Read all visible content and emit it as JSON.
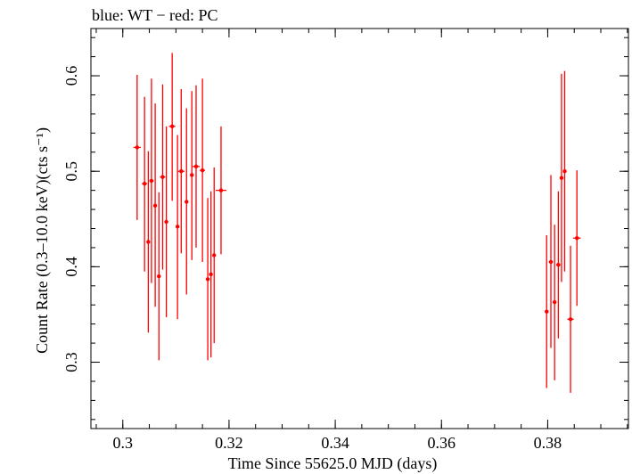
{
  "chart_data": {
    "type": "scatter",
    "title": "blue: WT − red: PC",
    "xlabel": "Time Since 55625.0 MJD (days)",
    "ylabel": "Count Rate (0.3–10.0 keV)(cts s⁻¹)",
    "xlim": [
      0.294,
      0.3952
    ],
    "ylim": [
      0.2305,
      0.6495
    ],
    "x_ticks": [
      0.3,
      0.32,
      0.34,
      0.36,
      0.38
    ],
    "x_tick_labels": [
      "0.3",
      "0.32",
      "0.34",
      "0.36",
      "0.38"
    ],
    "y_ticks": [
      0.3,
      0.4,
      0.5,
      0.6
    ],
    "y_tick_labels": [
      "0.3",
      "0.4",
      "0.5",
      "0.6"
    ],
    "grid": false,
    "legend": "none",
    "series": [
      {
        "color": "#ff0000",
        "points": [
          {
            "x": 0.3027,
            "y": 0.525,
            "ylo": 0.449,
            "yhi": 0.601,
            "xerr": 0.0007
          },
          {
            "x": 0.3041,
            "y": 0.487,
            "ylo": 0.395,
            "yhi": 0.578,
            "xerr": 0.0005
          },
          {
            "x": 0.3048,
            "y": 0.426,
            "ylo": 0.331,
            "yhi": 0.521,
            "xerr": 0.0003
          },
          {
            "x": 0.3054,
            "y": 0.49,
            "ylo": 0.383,
            "yhi": 0.597,
            "xerr": 0.0004
          },
          {
            "x": 0.3061,
            "y": 0.464,
            "ylo": 0.358,
            "yhi": 0.571,
            "xerr": 0.0003
          },
          {
            "x": 0.3068,
            "y": 0.39,
            "ylo": 0.302,
            "yhi": 0.478,
            "xerr": 0.0003
          },
          {
            "x": 0.3075,
            "y": 0.494,
            "ylo": 0.397,
            "yhi": 0.591,
            "xerr": 0.0005
          },
          {
            "x": 0.3082,
            "y": 0.447,
            "ylo": 0.347,
            "yhi": 0.547,
            "xerr": 0.0003
          },
          {
            "x": 0.3093,
            "y": 0.547,
            "ylo": 0.469,
            "yhi": 0.624,
            "xerr": 0.0006
          },
          {
            "x": 0.3103,
            "y": 0.442,
            "ylo": 0.345,
            "yhi": 0.538,
            "xerr": 0.0003
          },
          {
            "x": 0.311,
            "y": 0.5,
            "ylo": 0.414,
            "yhi": 0.586,
            "xerr": 0.0006
          },
          {
            "x": 0.312,
            "y": 0.468,
            "ylo": 0.371,
            "yhi": 0.566,
            "xerr": 0.0003
          },
          {
            "x": 0.313,
            "y": 0.496,
            "ylo": 0.407,
            "yhi": 0.584,
            "xerr": 0.0003
          },
          {
            "x": 0.3138,
            "y": 0.505,
            "ylo": 0.42,
            "yhi": 0.59,
            "xerr": 0.0007
          },
          {
            "x": 0.315,
            "y": 0.501,
            "ylo": 0.405,
            "yhi": 0.597,
            "xerr": 0.0005
          },
          {
            "x": 0.316,
            "y": 0.387,
            "ylo": 0.302,
            "yhi": 0.472,
            "xerr": 0.0003
          },
          {
            "x": 0.3166,
            "y": 0.392,
            "ylo": 0.305,
            "yhi": 0.479,
            "xerr": 0.0003
          },
          {
            "x": 0.3172,
            "y": 0.412,
            "ylo": 0.32,
            "yhi": 0.504,
            "xerr": 0.0002
          },
          {
            "x": 0.3185,
            "y": 0.48,
            "ylo": 0.413,
            "yhi": 0.547,
            "xerr": 0.001
          },
          {
            "x": 0.3798,
            "y": 0.353,
            "ylo": 0.273,
            "yhi": 0.433,
            "xerr": 0.0003
          },
          {
            "x": 0.3806,
            "y": 0.405,
            "ylo": 0.315,
            "yhi": 0.496,
            "xerr": 0.0004
          },
          {
            "x": 0.3813,
            "y": 0.363,
            "ylo": 0.281,
            "yhi": 0.444,
            "xerr": 0.0003
          },
          {
            "x": 0.382,
            "y": 0.402,
            "ylo": 0.325,
            "yhi": 0.479,
            "xerr": 0.0004
          },
          {
            "x": 0.3826,
            "y": 0.493,
            "ylo": 0.384,
            "yhi": 0.602,
            "xerr": 0.0003
          },
          {
            "x": 0.3832,
            "y": 0.5,
            "ylo": 0.395,
            "yhi": 0.605,
            "xerr": 0.0003
          },
          {
            "x": 0.3843,
            "y": 0.345,
            "ylo": 0.268,
            "yhi": 0.422,
            "xerr": 0.0006
          },
          {
            "x": 0.3855,
            "y": 0.43,
            "ylo": 0.359,
            "yhi": 0.501,
            "xerr": 0.0007
          }
        ]
      }
    ]
  }
}
